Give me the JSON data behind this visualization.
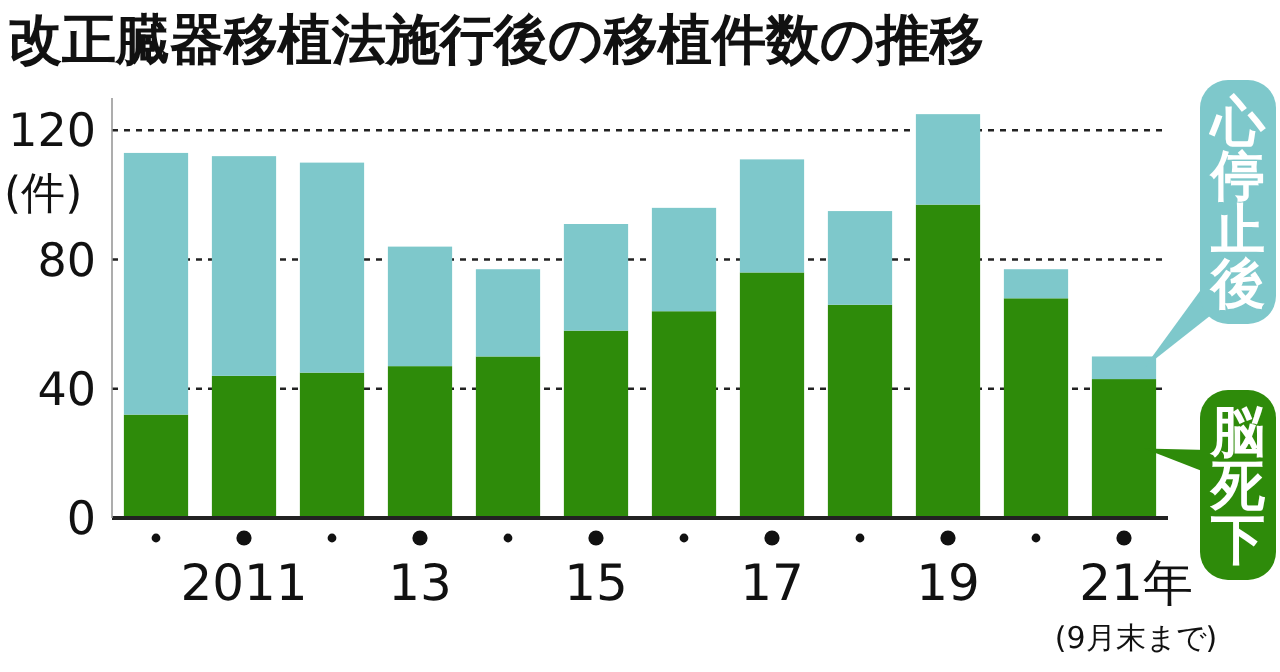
{
  "chart_data": {
    "type": "bar",
    "title": "改正臓器移植法施行後の移植件数の推移",
    "ylabel": "(件)",
    "categories": [
      null,
      "2011",
      null,
      "13",
      null,
      "15",
      null,
      "17",
      null,
      "19",
      null,
      "21年"
    ],
    "stacked": true,
    "series": [
      {
        "name": "脳死下",
        "color": "#2e8b0a",
        "values": [
          32,
          44,
          45,
          47,
          50,
          58,
          64,
          76,
          66,
          97,
          68,
          43
        ]
      },
      {
        "name": "心停止後",
        "color": "#7ec8cb",
        "values": [
          81,
          68,
          65,
          37,
          27,
          33,
          32,
          35,
          29,
          28,
          9,
          7
        ]
      }
    ],
    "ylim": [
      0,
      130
    ],
    "yticks": [
      0,
      40,
      80,
      120
    ],
    "grid": "y",
    "annotations": [
      "(9月末まで)"
    ]
  }
}
